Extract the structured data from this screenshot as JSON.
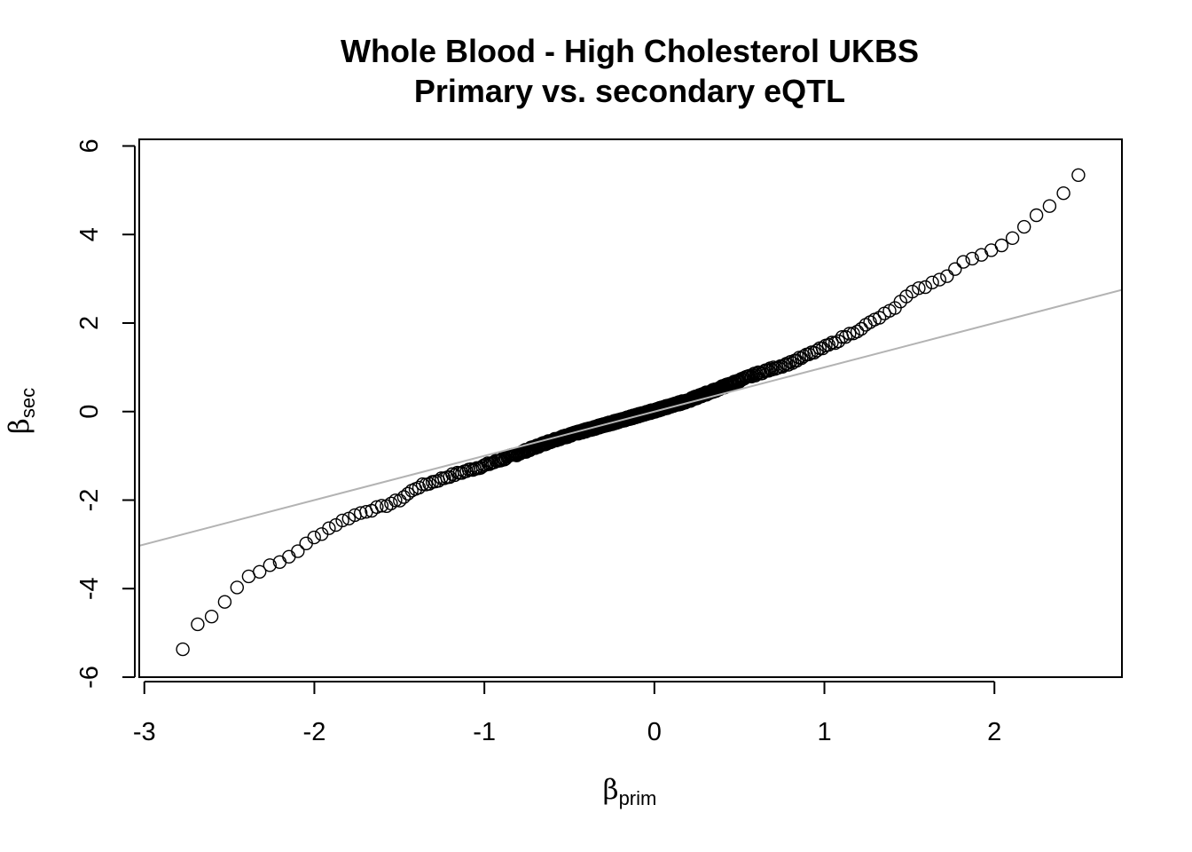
{
  "chart_data": {
    "type": "scatter",
    "title": "Whole Blood - High Cholesterol UKBS",
    "subtitle": "Primary vs. secondary eQTL",
    "xlabel": {
      "symbol": "β",
      "subscript": "prim"
    },
    "ylabel": {
      "symbol": "β",
      "subscript": "sec"
    },
    "xlim": [
      -3.03,
      2.75
    ],
    "ylim": [
      -6.0,
      6.15
    ],
    "xticks": [
      -3,
      -2,
      -1,
      0,
      1,
      2
    ],
    "yticks": [
      -6,
      -4,
      -2,
      0,
      2,
      4,
      6
    ],
    "xtick_labels": [
      "-3",
      "-2",
      "-1",
      "0",
      "1",
      "2"
    ],
    "ytick_labels": [
      "-6",
      "-4",
      "-2",
      "0",
      "2",
      "4",
      "6"
    ],
    "grid": false,
    "marker": "open-circle",
    "point_color": "#000000",
    "reference_line": {
      "type": "identity",
      "slope": 1,
      "intercept": 0,
      "color": "#b3b3b3"
    },
    "curve_knots": {
      "x": [
        -2.82,
        -2.78,
        -2.74,
        -2.7,
        -2.65,
        -2.6,
        -2.55,
        -2.5,
        -2.45,
        -2.4,
        -2.3,
        -2.2,
        -2.1,
        -2.0,
        -1.9,
        -1.8,
        -1.7,
        -1.6,
        -1.5,
        -1.4,
        -1.2,
        -1.0,
        -0.8,
        -0.6,
        -0.4,
        -0.2,
        0.0,
        0.2,
        0.4,
        0.6,
        0.8,
        1.0,
        1.2,
        1.4,
        1.5,
        1.6,
        1.7,
        1.8,
        1.9,
        2.0,
        2.1,
        2.15,
        2.2,
        2.3,
        2.4,
        2.5,
        2.54
      ],
      "y": [
        -5.6,
        -5.4,
        -5.2,
        -4.85,
        -4.7,
        -4.6,
        -4.4,
        -4.15,
        -3.95,
        -3.75,
        -3.55,
        -3.4,
        -3.15,
        -2.85,
        -2.6,
        -2.4,
        -2.25,
        -2.15,
        -2.0,
        -1.72,
        -1.45,
        -1.22,
        -0.95,
        -0.65,
        -0.42,
        -0.2,
        0.02,
        0.25,
        0.55,
        0.85,
        1.1,
        1.45,
        1.85,
        2.3,
        2.65,
        2.85,
        3.0,
        3.35,
        3.5,
        3.65,
        3.9,
        4.1,
        4.3,
        4.6,
        4.9,
        5.35,
        5.72
      ]
    },
    "n_points": 900
  }
}
